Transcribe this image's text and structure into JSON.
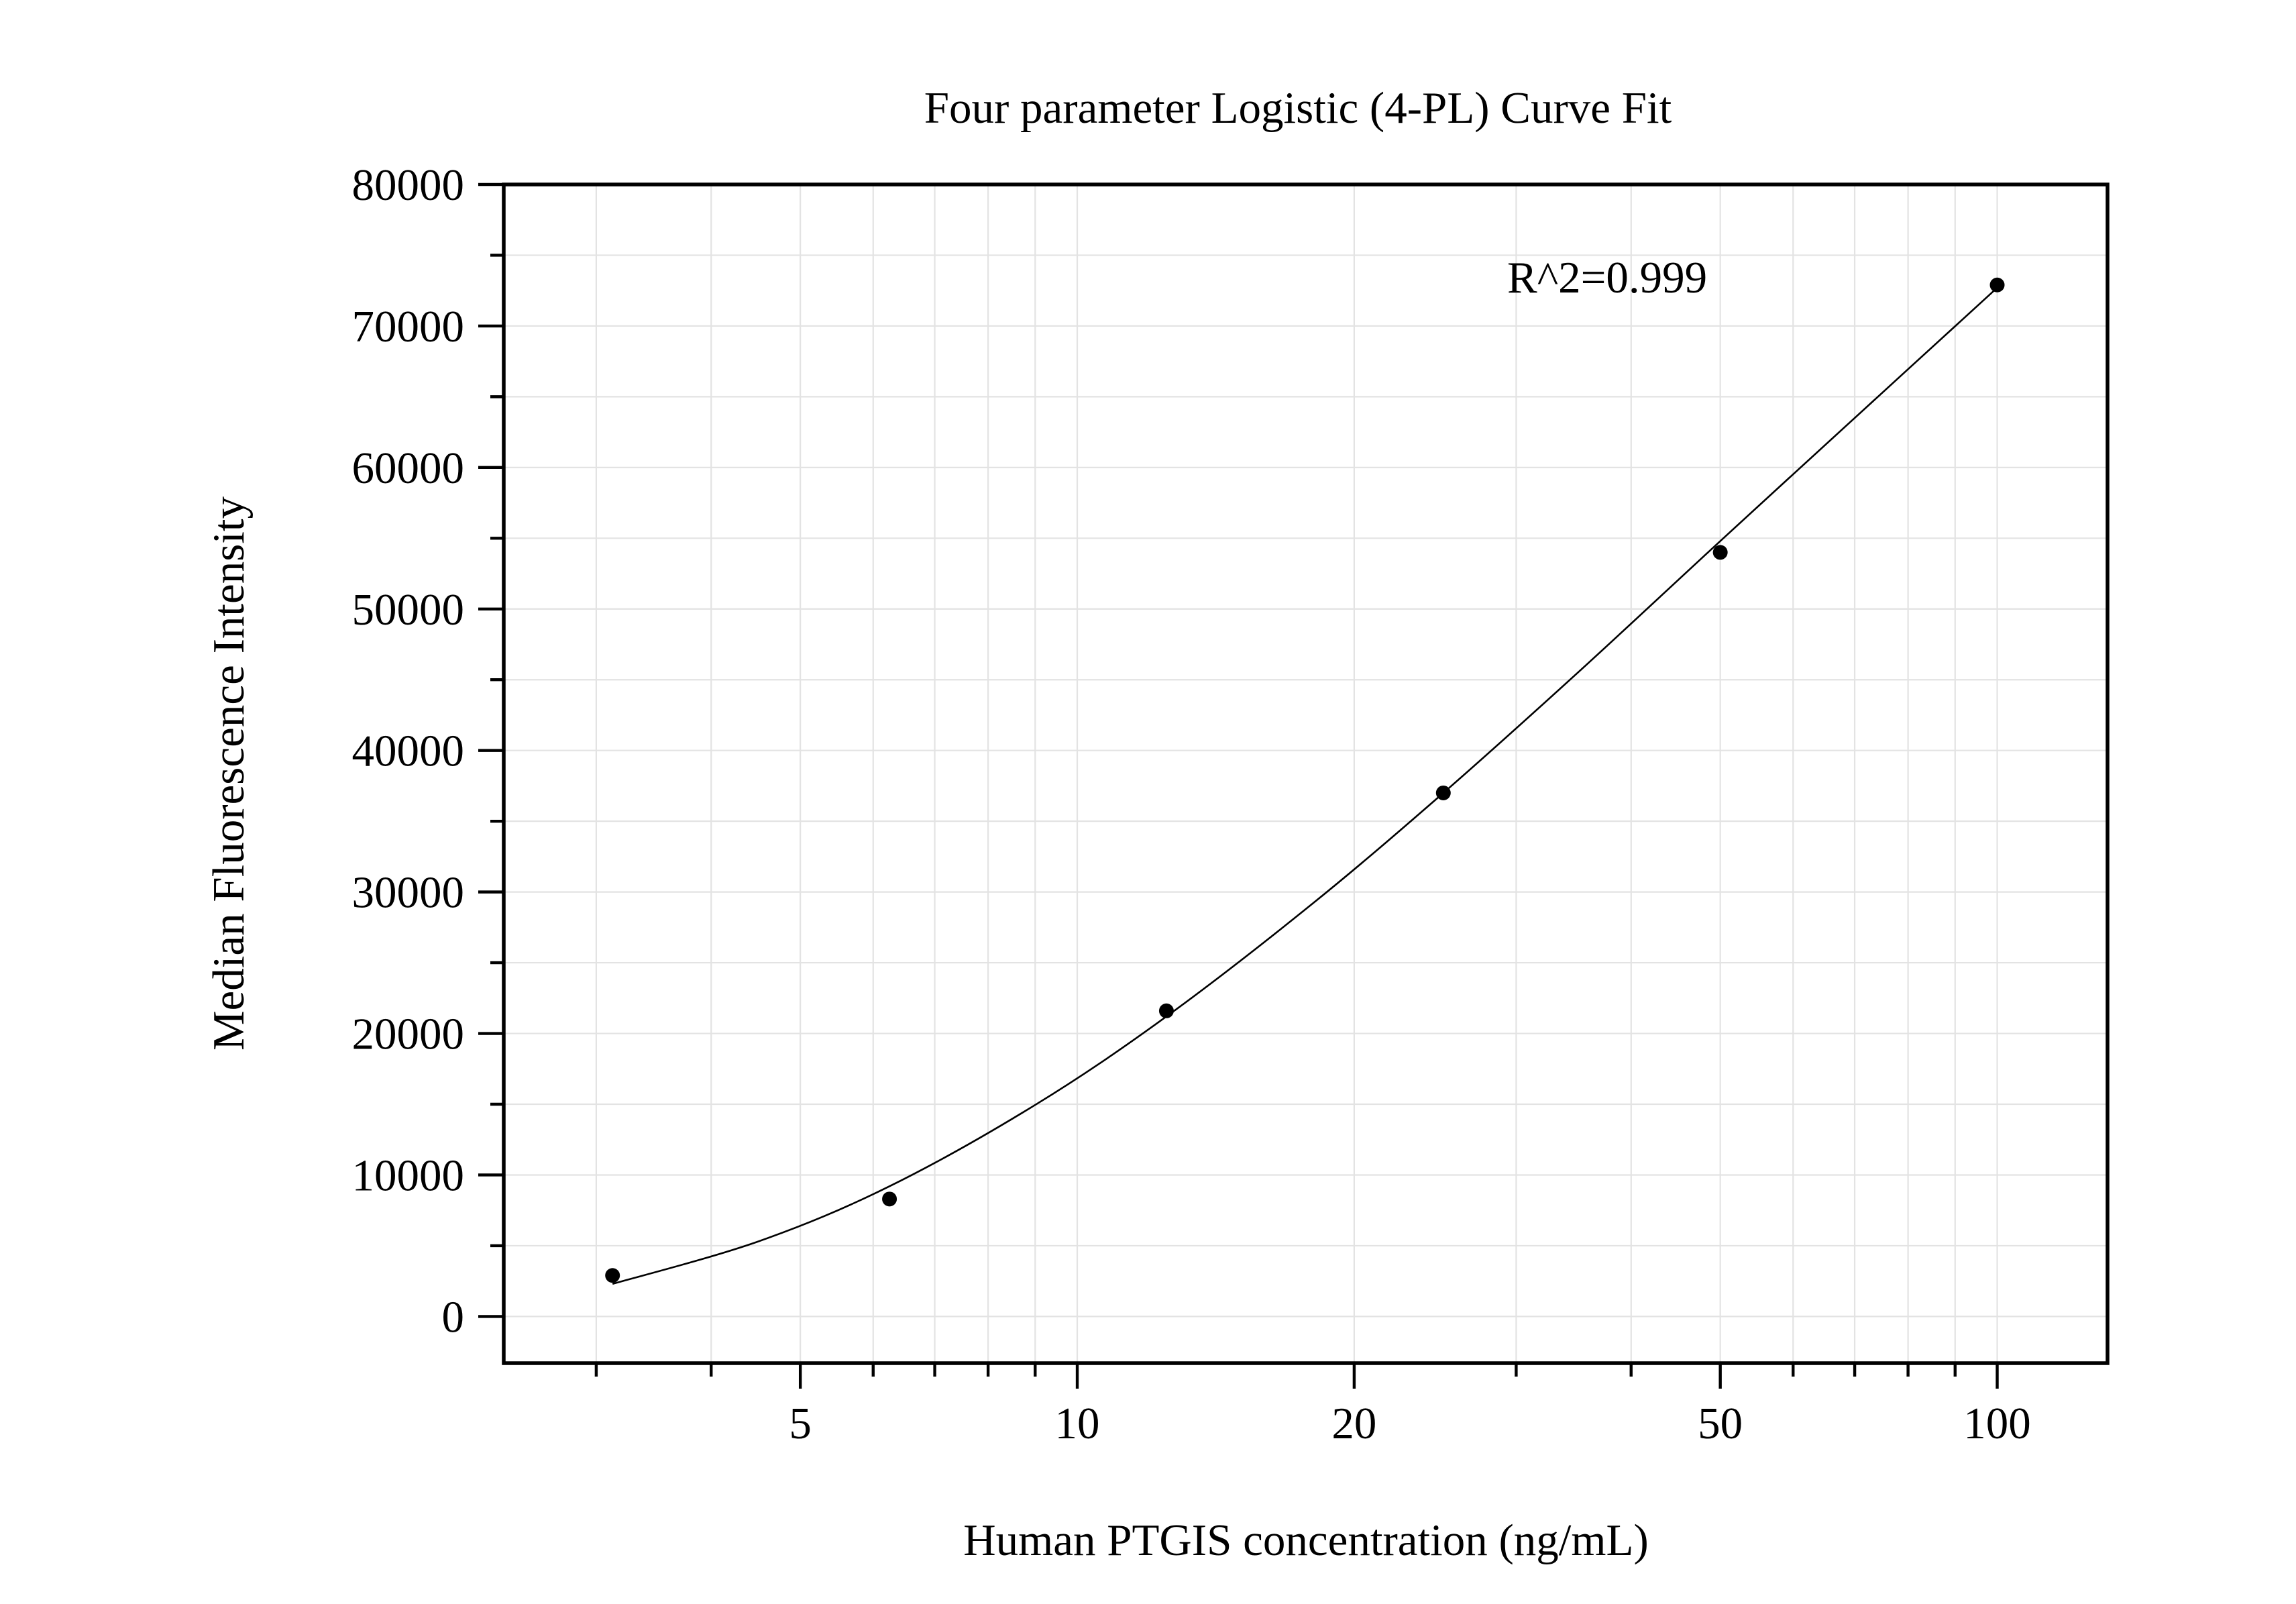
{
  "chart_data": {
    "type": "scatter",
    "title": "Four parameter Logistic (4-PL) Curve Fit",
    "xlabel": "Human PTGIS concentration (ng/mL)",
    "ylabel": "Median Fluorescence Intensity",
    "annotation": "R^2=0.999",
    "xscale": "log",
    "xlim": [
      2.38,
      131.8
    ],
    "ylim": [
      -3300,
      80000
    ],
    "x_ticks": [
      5,
      10,
      20,
      50,
      100
    ],
    "x_tick_labels": [
      "5",
      "10",
      "20",
      "50",
      "100"
    ],
    "x_minor_ticks": [
      3,
      4,
      6,
      7,
      8,
      9,
      30,
      40,
      60,
      70,
      80,
      90
    ],
    "y_ticks": [
      0,
      10000,
      20000,
      30000,
      40000,
      50000,
      60000,
      70000,
      80000
    ],
    "y_tick_labels": [
      "0",
      "10000",
      "20000",
      "30000",
      "40000",
      "50000",
      "60000",
      "70000",
      "80000"
    ],
    "y_minor_ticks": [
      5000,
      15000,
      25000,
      35000,
      45000,
      55000,
      65000,
      75000
    ],
    "grid": true,
    "series": [
      {
        "type": "scatter",
        "x": [
          3.125,
          6.25,
          12.5,
          25,
          50,
          100
        ],
        "y": [
          2900,
          8300,
          21600,
          37000,
          54000,
          72900
        ]
      },
      {
        "type": "line",
        "x": [
          3.125,
          4.5,
          6.25,
          9,
          12.5,
          18,
          25,
          35,
          50,
          70,
          100
        ],
        "y": [
          2300,
          5300,
          9200,
          14950,
          21200,
          29150,
          37000,
          45500,
          54800,
          63500,
          72700
        ]
      }
    ],
    "colors": {
      "background": "#ffffff",
      "text": "#000000",
      "axis": "#000000",
      "grid": "#e3e3e3",
      "points": "#000000",
      "curve": "#000000"
    }
  }
}
